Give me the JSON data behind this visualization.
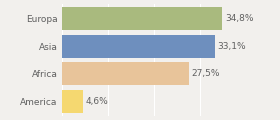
{
  "categories": [
    "Europa",
    "Asia",
    "Africa",
    "America"
  ],
  "values": [
    34.8,
    33.1,
    27.5,
    4.6
  ],
  "labels": [
    "34,8%",
    "33,1%",
    "27,5%",
    "4,6%"
  ],
  "bar_colors": [
    "#a9ba7e",
    "#6e8fbe",
    "#e8c49a",
    "#f5d870"
  ],
  "background_color": "#f2f0ed",
  "xlim": [
    0,
    40
  ],
  "bar_height": 0.82,
  "label_fontsize": 6.5,
  "category_fontsize": 6.5,
  "grid_color": "#ffffff",
  "text_color": "#606060"
}
